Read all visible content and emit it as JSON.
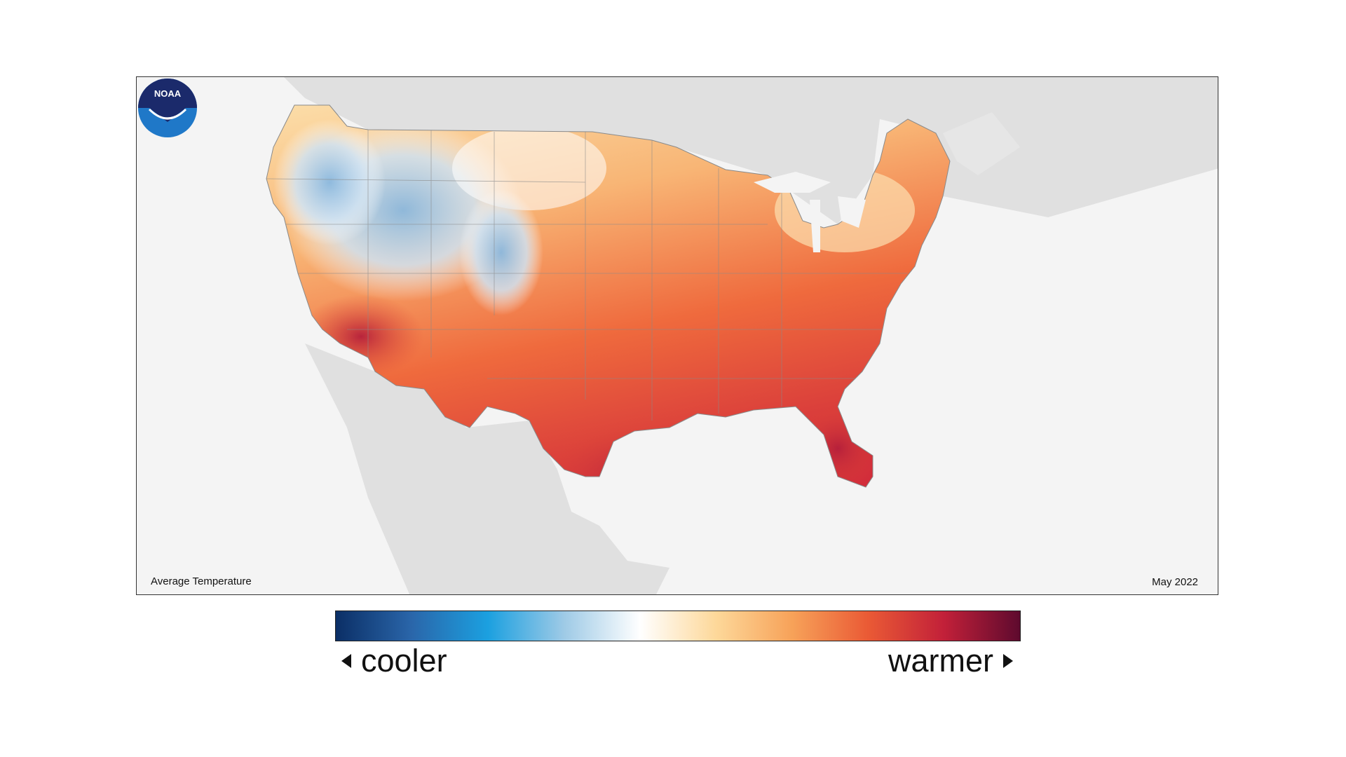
{
  "map": {
    "caption": "Average Temperature",
    "date": "May 2022",
    "logo_text": "NOAA",
    "background_color": "#f4f4f4",
    "land_color": "#e0e0e0",
    "border_color": "#8a8a8a"
  },
  "legend": {
    "low_label": "cooler",
    "high_label": "warmer",
    "colors": [
      "#0b2f66",
      "#2a66aa",
      "#1ba0e0",
      "#9ecae6",
      "#ffffff",
      "#fdd89a",
      "#f7a259",
      "#ea5a35",
      "#c22039",
      "#5e0a2e"
    ]
  }
}
